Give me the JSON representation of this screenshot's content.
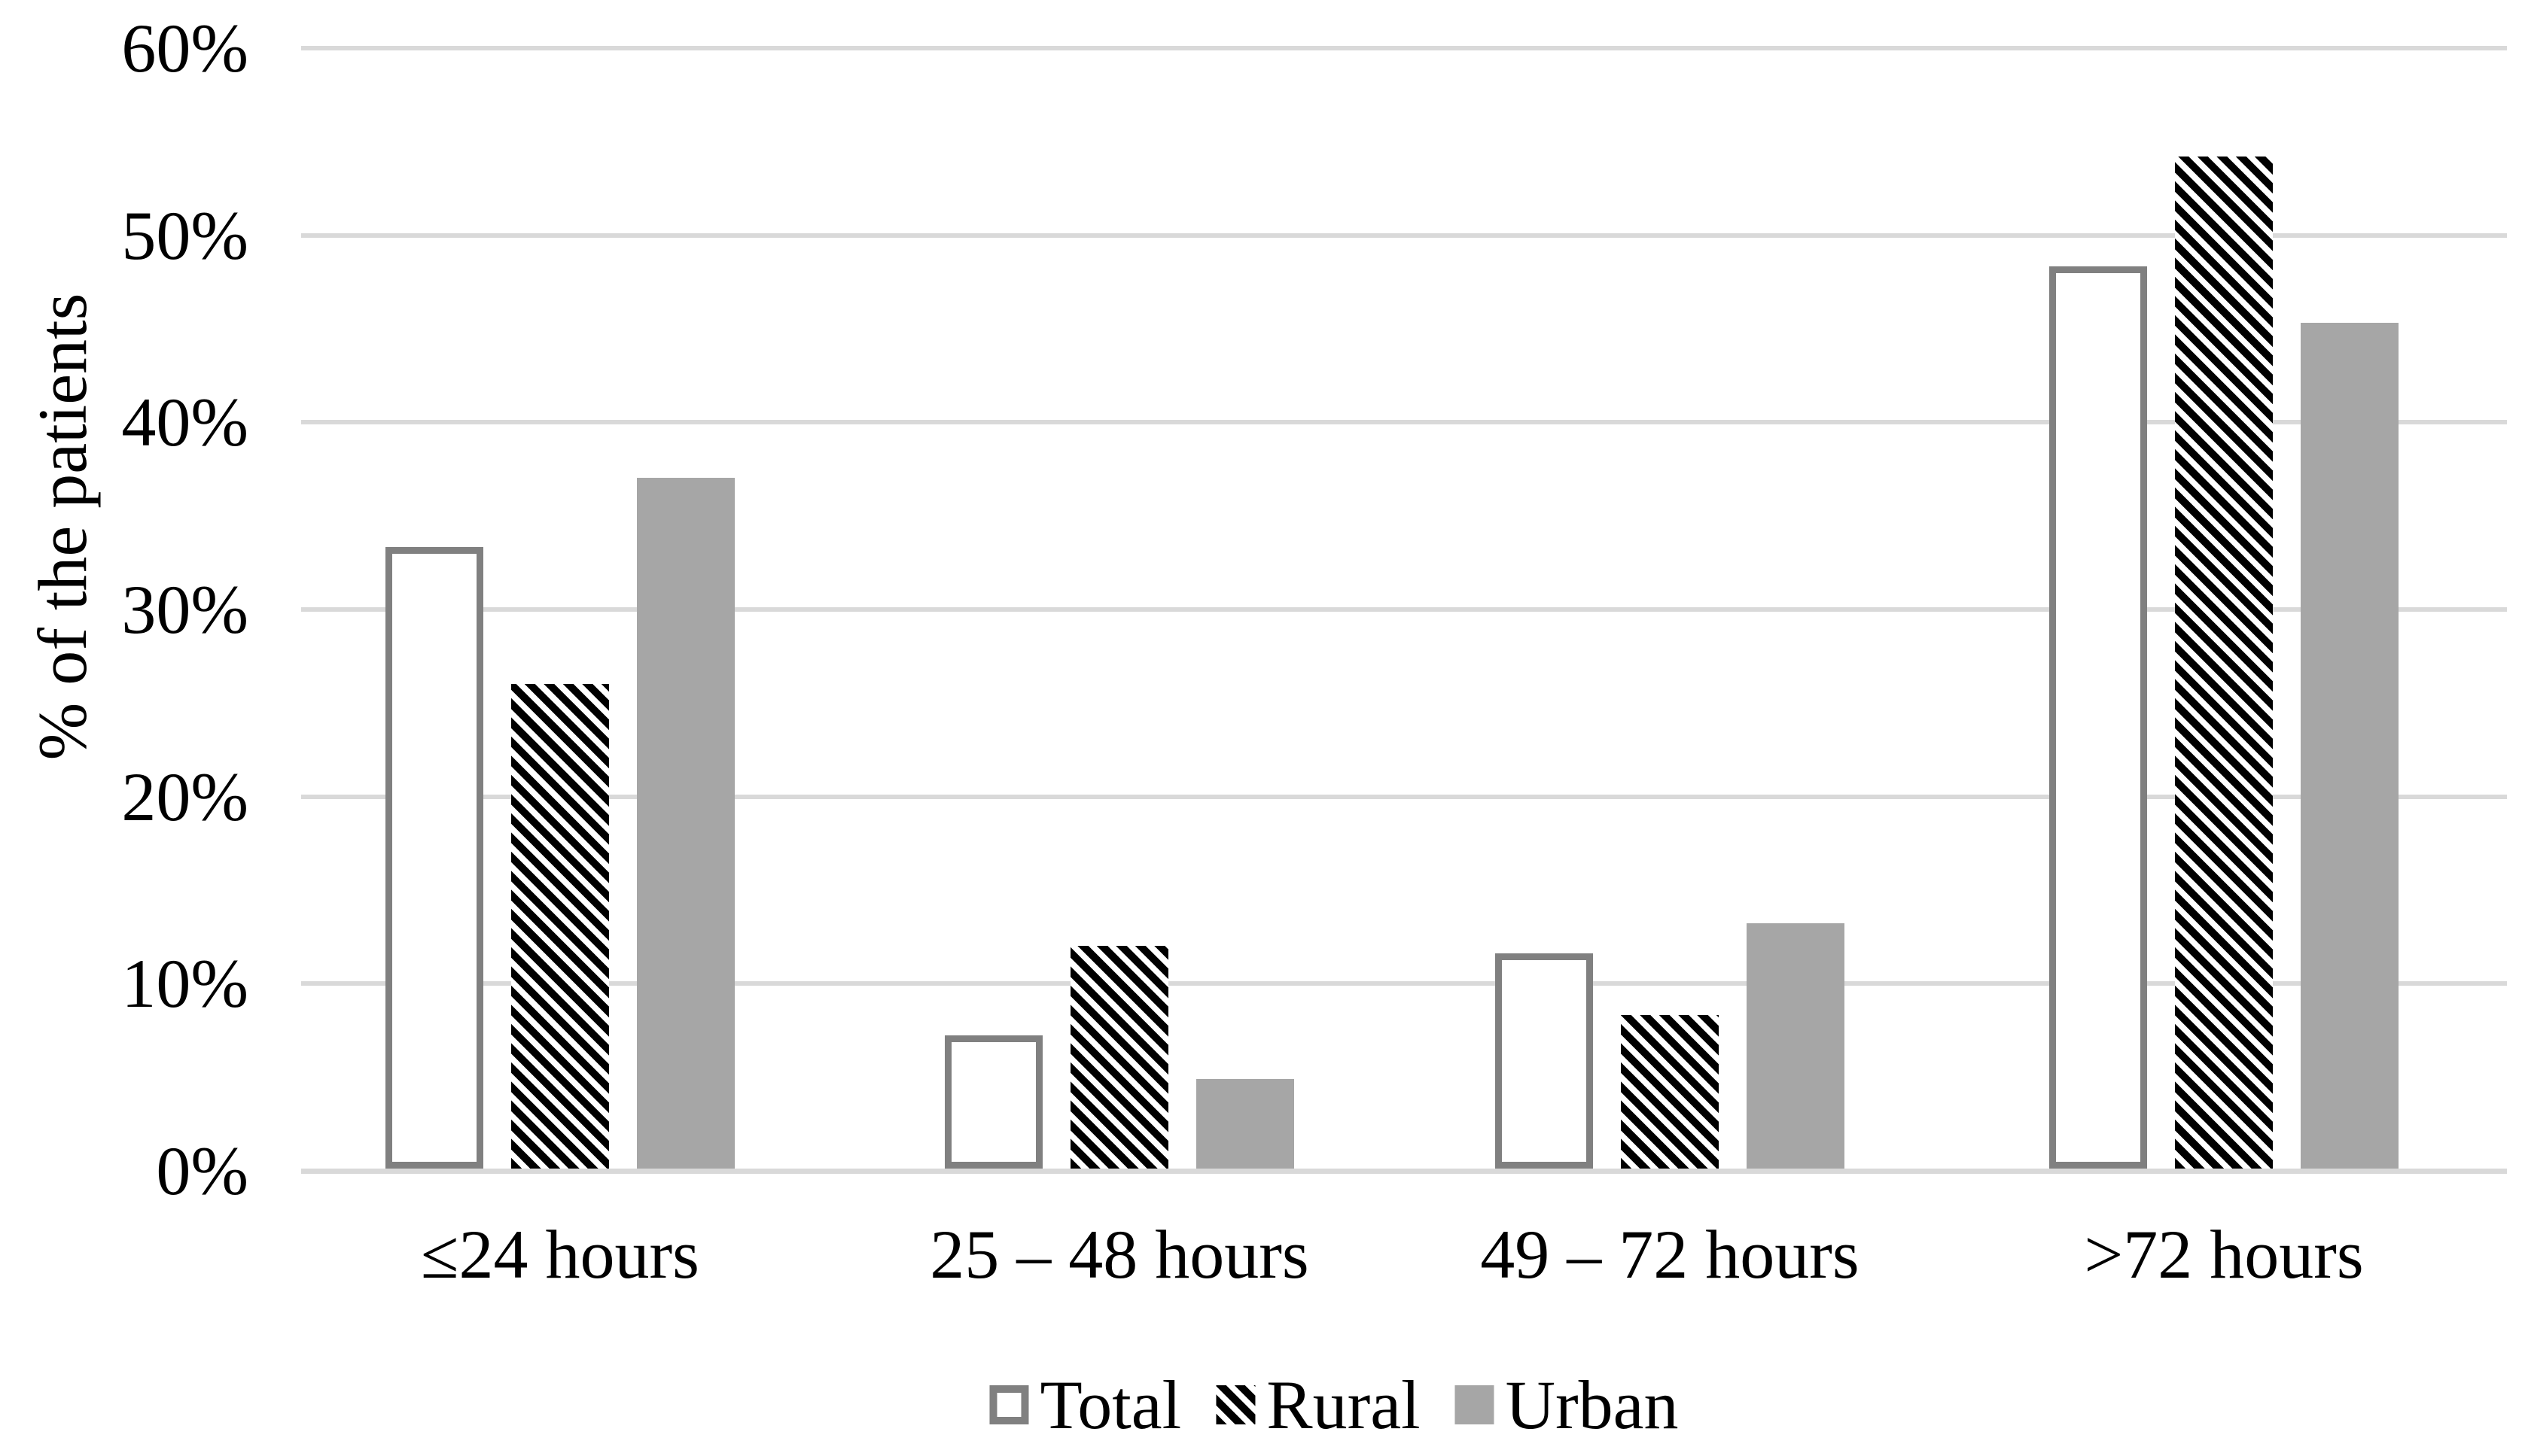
{
  "chart_data": {
    "type": "bar",
    "title": "",
    "ylabel": "% of the patients",
    "xlabel": "",
    "categories": [
      "≤24 hours",
      "25 – 48 hours",
      "49 – 72 hours",
      ">72 hours"
    ],
    "series": [
      {
        "name": "Total",
        "style": "outline",
        "fill": "#ffffff",
        "border_color": "#808080",
        "values": [
          33.2,
          7.1,
          11.5,
          48.2
        ]
      },
      {
        "name": "Rural",
        "style": "hatch",
        "fill": "#ffffff",
        "hatch_color": "#000000",
        "values": [
          25.9,
          11.9,
          8.2,
          54.1
        ]
      },
      {
        "name": "Urban",
        "style": "solid",
        "fill": "#a6a6a6",
        "values": [
          36.9,
          4.8,
          13.1,
          45.2
        ]
      }
    ],
    "y_axis": {
      "min": 0,
      "max": 60,
      "step": 10,
      "tick_labels": [
        "0%",
        "10%",
        "20%",
        "30%",
        "40%",
        "50%",
        "60%"
      ]
    },
    "grid": "horizontal",
    "gridline_color": "#d9d9d9",
    "axis_line_color": "#d9d9d9",
    "legend_position": "bottom",
    "legend": [
      "Total",
      "Rural",
      "Urban"
    ]
  }
}
